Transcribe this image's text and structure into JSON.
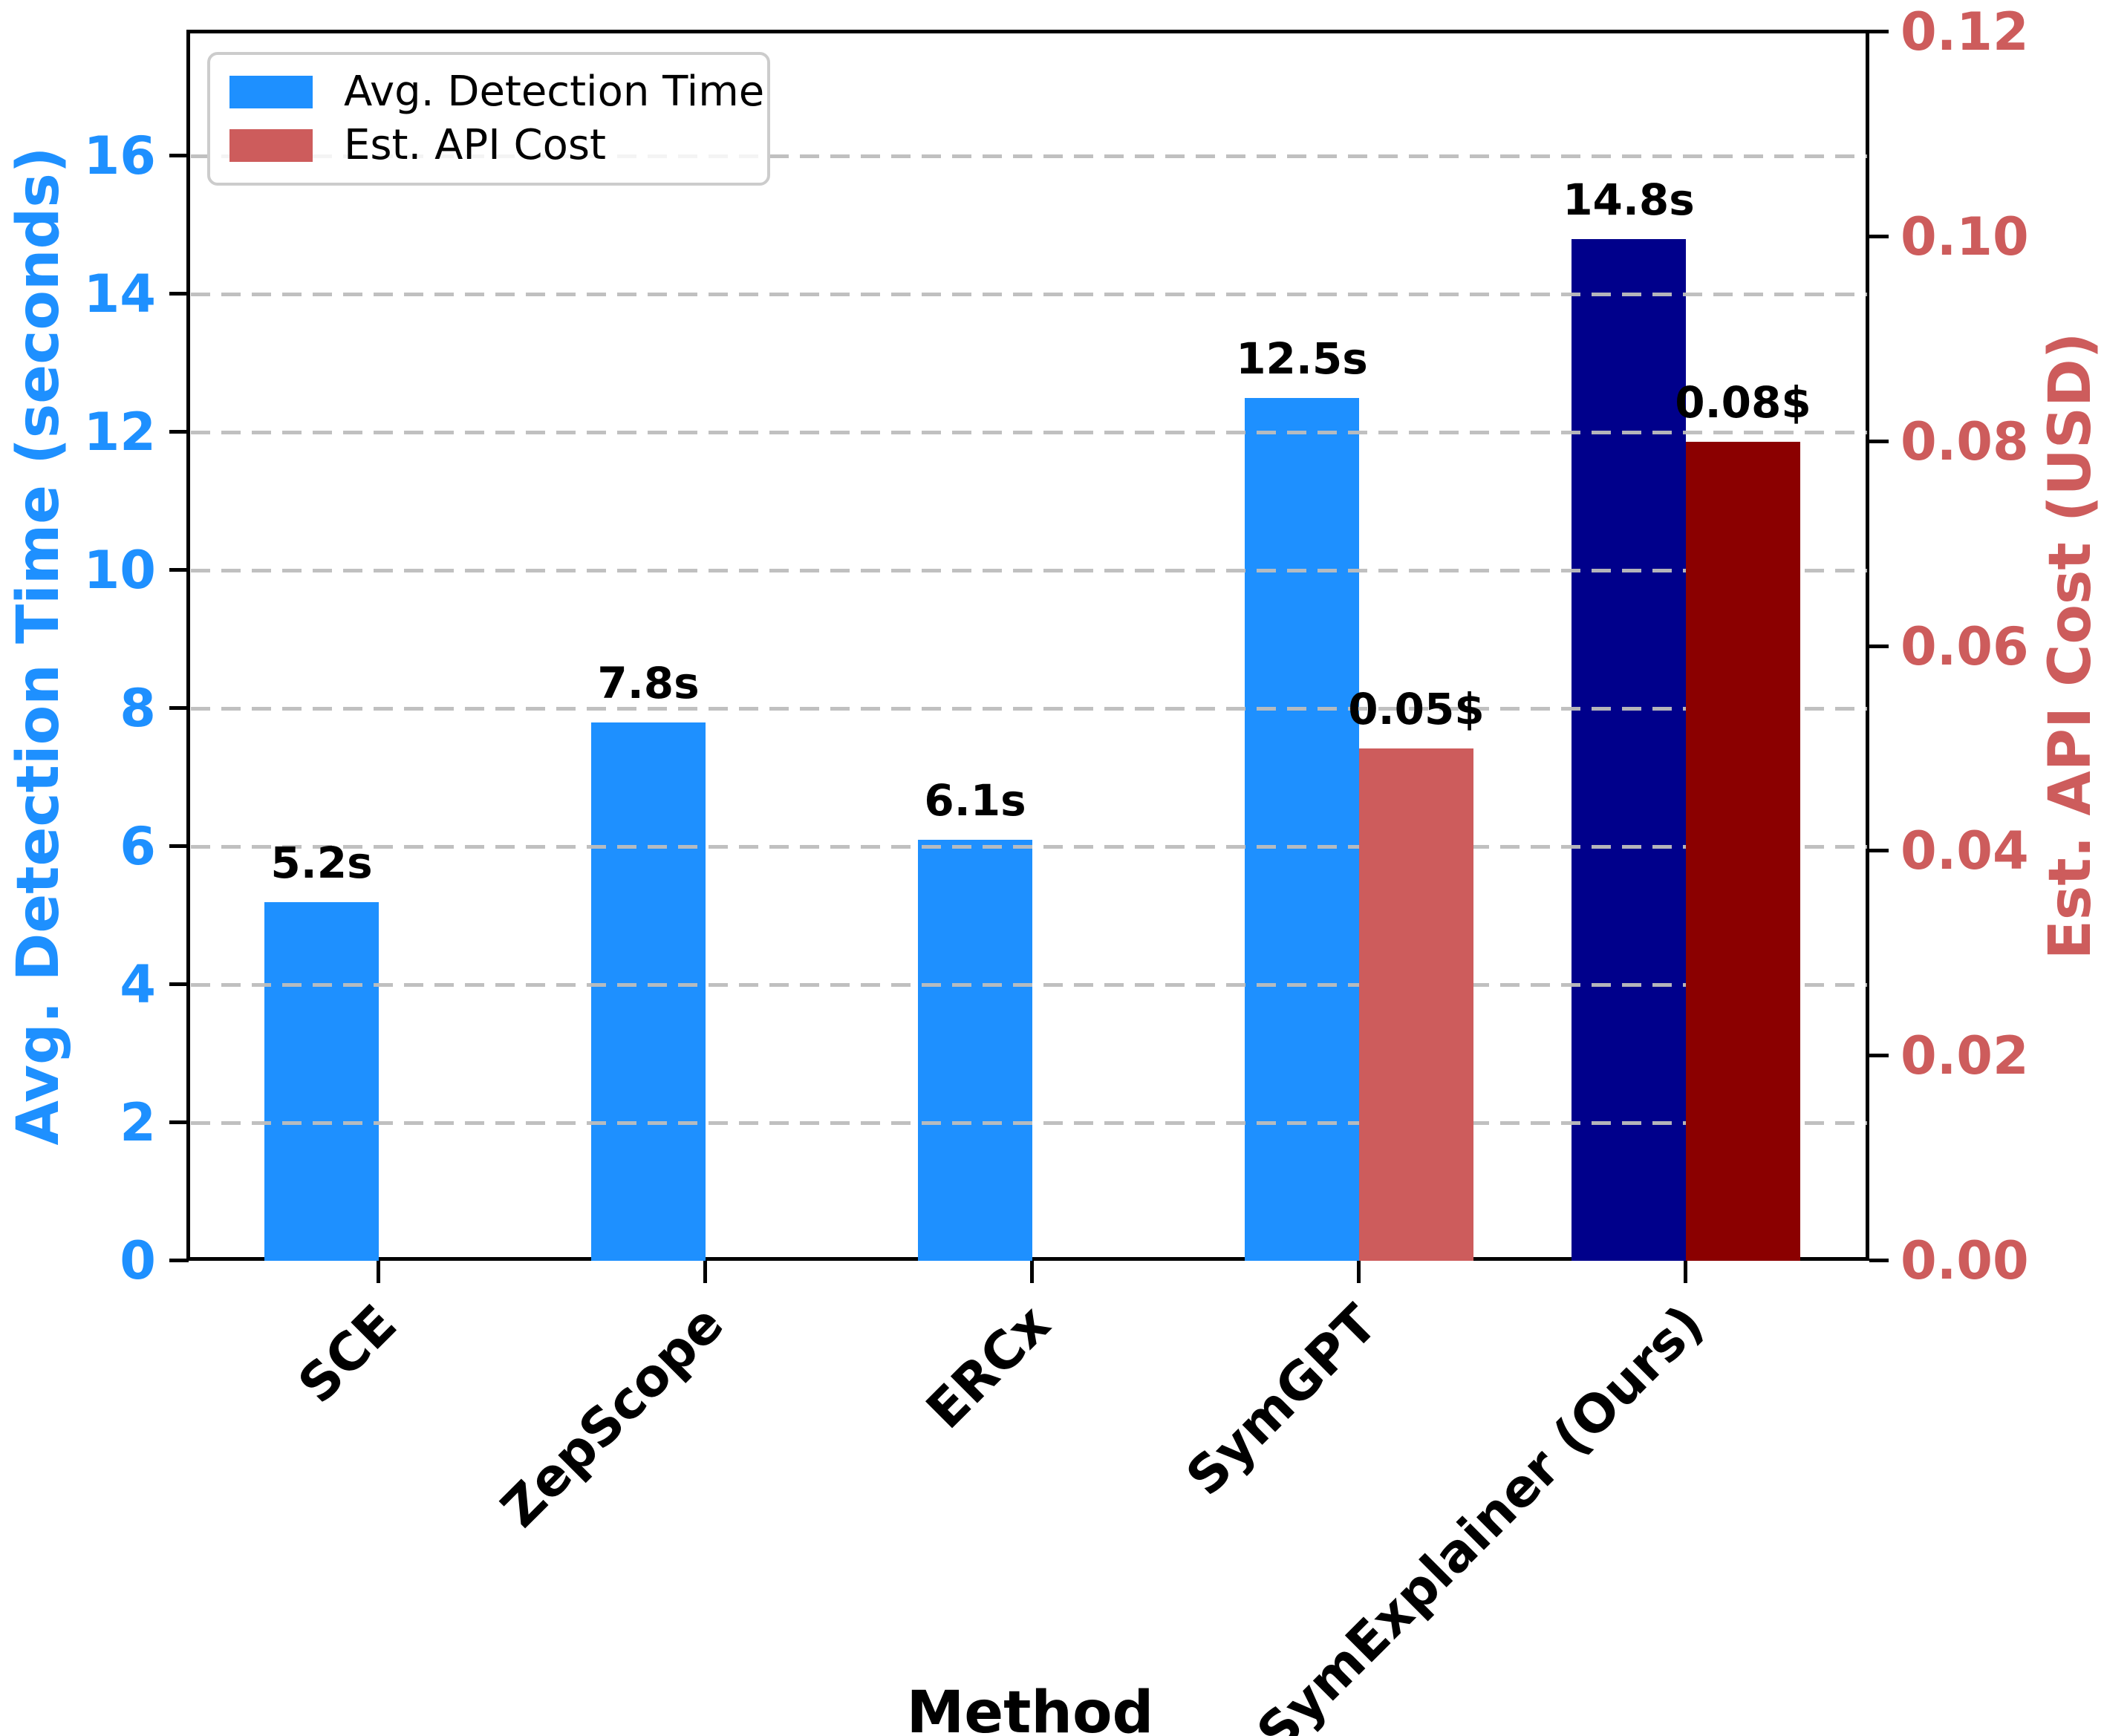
{
  "colors": {
    "time_bar": "#1E90FF",
    "time_bar_ours": "#00008B",
    "cost_bar": "#CD5C5C",
    "cost_bar_ours": "#8B0000",
    "left_axis_text": "#1E90FF",
    "right_axis_text": "#CD5C5C",
    "grid": "#BDBDBD",
    "spine": "#000000",
    "legend_border": "#CCCCCC",
    "annotation_text": "#000000"
  },
  "chart_data": {
    "type": "bar",
    "title": "",
    "xlabel": "Method",
    "ylabel_left": "Avg. Detection Time (seconds)",
    "ylabel_right": "Est. API Cost (USD)",
    "categories": [
      "SCE",
      "ZepScope",
      "ERCx",
      "SymGPT",
      "SymExplainer (Ours)"
    ],
    "series": [
      {
        "name": "Avg. Detection Time",
        "axis": "left",
        "values": [
          5.2,
          7.8,
          6.1,
          12.5,
          14.8
        ],
        "labels": [
          "5.2s",
          "7.8s",
          "6.1s",
          "12.5s",
          "14.8s"
        ],
        "colors": [
          "#1E90FF",
          "#1E90FF",
          "#1E90FF",
          "#1E90FF",
          "#00008B"
        ]
      },
      {
        "name": "Est. API Cost",
        "axis": "right",
        "values": [
          0,
          0,
          0,
          0.05,
          0.08
        ],
        "labels": [
          "",
          "",
          "",
          "0.05$",
          "0.08$"
        ],
        "colors": [
          "#CD5C5C",
          "#CD5C5C",
          "#CD5C5C",
          "#CD5C5C",
          "#8B0000"
        ]
      }
    ],
    "ylim_left": [
      0,
      17.8
    ],
    "ylim_right": [
      0,
      0.12
    ],
    "yticks_left": [
      0,
      2,
      4,
      6,
      8,
      10,
      12,
      14,
      16
    ],
    "yticks_right": [
      "0.00",
      "0.02",
      "0.04",
      "0.06",
      "0.08",
      "0.10",
      "0.12"
    ],
    "grid": "dashed horizontal at left-axis ticks",
    "legend_position": "upper left",
    "legend_entries": [
      "Avg. Detection Time",
      "Est. API Cost"
    ]
  }
}
